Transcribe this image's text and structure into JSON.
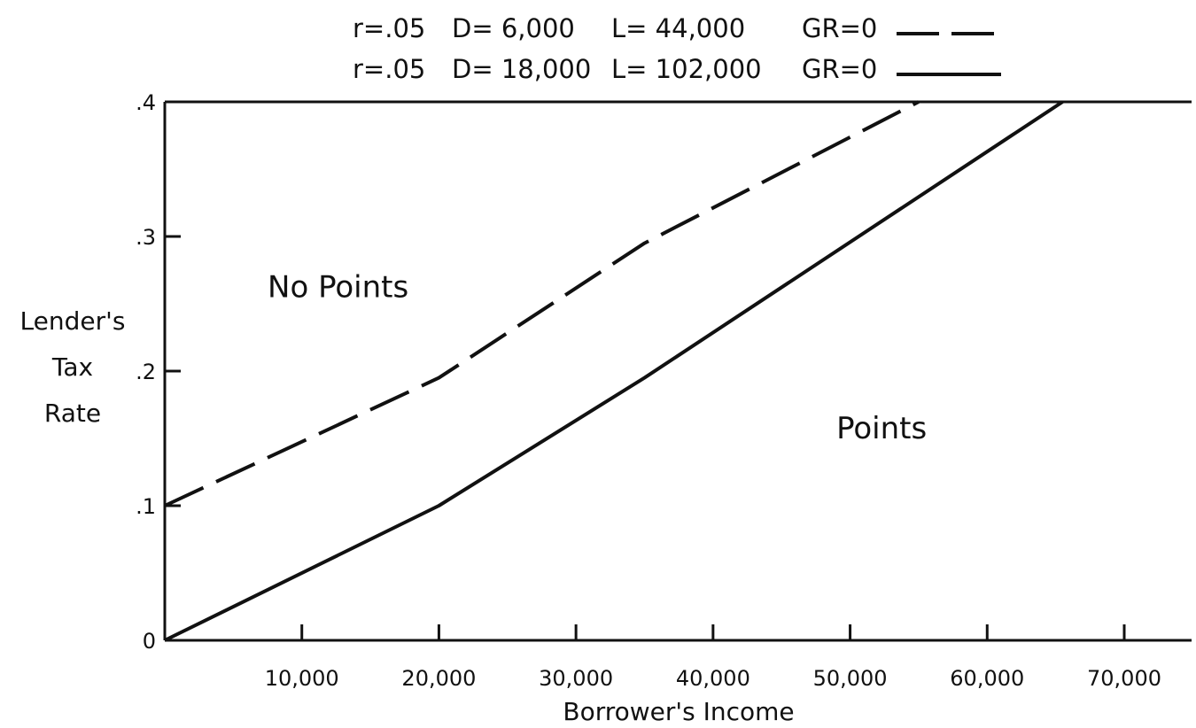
{
  "chart_data": {
    "type": "line",
    "title": "",
    "xlabel": "Borrower's Income",
    "ylabel_lines": [
      "Lender's",
      "Tax",
      "Rate"
    ],
    "xlim": [
      0,
      75000
    ],
    "ylim": [
      0,
      0.4
    ],
    "x_ticks": [
      10000,
      20000,
      30000,
      40000,
      50000,
      60000,
      70000
    ],
    "x_tick_labels": [
      "10,000",
      "20,000",
      "30,000",
      "40,000",
      "50,000",
      "60,000",
      "70,000"
    ],
    "y_ticks": [
      0,
      0.1,
      0.2,
      0.3,
      0.4
    ],
    "y_tick_labels": [
      "0",
      ".1",
      ".2",
      ".3",
      ".4"
    ],
    "grid": false,
    "legend_position": "top",
    "series": [
      {
        "name": "r=.05  D= 6,000  L= 44,000  GR=0",
        "legend_parts": [
          "r=.05",
          "D= 6,000",
          "L= 44,000",
          "GR=0"
        ],
        "line_style": "dashed",
        "x": [
          0,
          20000,
          35000,
          55000
        ],
        "y": [
          0.1,
          0.195,
          0.295,
          0.4
        ]
      },
      {
        "name": "r=.05  D= 18,000  L= 102,000  GR=0",
        "legend_parts": [
          "r=.05",
          "D= 18,000",
          "L= 102,000",
          "GR=0"
        ],
        "line_style": "solid",
        "x": [
          0,
          20000,
          35000,
          65500
        ],
        "y": [
          0,
          0.1,
          0.195,
          0.4
        ]
      }
    ],
    "annotations": [
      {
        "text": "No Points",
        "x": 7500,
        "y": 0.255
      },
      {
        "text": "Points",
        "x": 49000,
        "y": 0.15
      }
    ],
    "colors": {
      "line": "#111111",
      "background": "#ffffff"
    }
  }
}
